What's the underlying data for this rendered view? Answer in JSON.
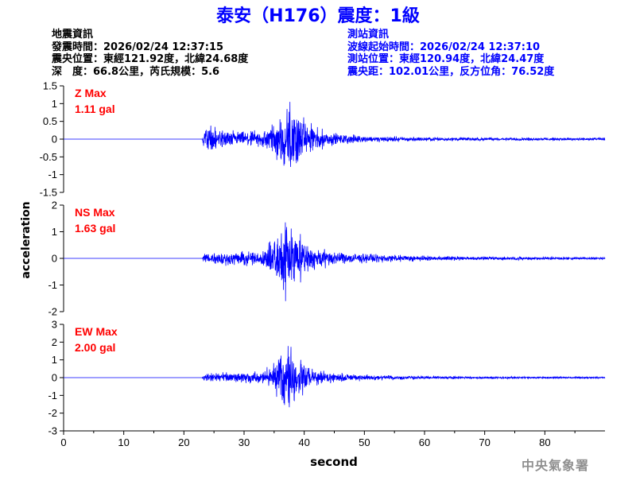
{
  "title": "泰安（H176）震度：1級",
  "quake_info": {
    "heading": "地震資訊",
    "origin_time": "發震時間：2026/02/24 12:37:15",
    "epicenter": "震央位置：東經121.92度，北緯24.68度",
    "depth_magnitude": "深　度：66.8公里，芮氏規模：5.6"
  },
  "station_info": {
    "heading": "測站資訊",
    "wave_start": "波線起始時間：2026/02/24 12:37:10",
    "location": "測站位置：東經120.94度，北緯24.47度",
    "distance": "震央距：102.01公里，反方位角：76.52度"
  },
  "agency": "中央氣象署",
  "colors": {
    "title": "#0000ff",
    "trace": "#0000ff",
    "max_label": "#ff0000",
    "axis": "#000000",
    "agency": "#909090"
  },
  "chart_data": [
    {
      "type": "line",
      "component": "Z",
      "max_label": "Z Max",
      "max_value": "1.11 gal",
      "ylim": [
        -1.5,
        1.5
      ],
      "yticks": [
        -1.5,
        -1,
        -0.5,
        0,
        0.5,
        1,
        1.5
      ],
      "ytick_labels": [
        "-1.5",
        "-1",
        "-0.5",
        "0",
        "0.5",
        "1",
        "1.5"
      ],
      "envelope": [
        [
          0,
          0.0
        ],
        [
          23,
          0.0
        ],
        [
          23.4,
          0.45
        ],
        [
          25,
          0.35
        ],
        [
          28,
          0.25
        ],
        [
          31,
          0.22
        ],
        [
          33,
          0.3
        ],
        [
          35,
          0.55
        ],
        [
          36.5,
          0.85
        ],
        [
          37.5,
          1.11
        ],
        [
          38.7,
          1.0
        ],
        [
          40,
          0.6
        ],
        [
          42,
          0.35
        ],
        [
          45,
          0.18
        ],
        [
          50,
          0.1
        ],
        [
          60,
          0.06
        ],
        [
          70,
          0.05
        ],
        [
          90,
          0.04
        ]
      ]
    },
    {
      "type": "line",
      "component": "NS",
      "max_label": "NS Max",
      "max_value": "1.63 gal",
      "ylim": [
        -2,
        2
      ],
      "yticks": [
        -2,
        -1,
        0,
        1,
        2
      ],
      "ytick_labels": [
        "-2",
        "-1",
        "0",
        "1",
        "2"
      ],
      "envelope": [
        [
          0,
          0.0
        ],
        [
          23,
          0.0
        ],
        [
          23.4,
          0.25
        ],
        [
          26,
          0.28
        ],
        [
          30,
          0.28
        ],
        [
          33,
          0.32
        ],
        [
          35,
          0.8
        ],
        [
          36.8,
          1.63
        ],
        [
          38.5,
          1.2
        ],
        [
          40,
          0.7
        ],
        [
          42,
          0.45
        ],
        [
          45,
          0.3
        ],
        [
          50,
          0.18
        ],
        [
          60,
          0.1
        ],
        [
          70,
          0.07
        ],
        [
          90,
          0.05
        ]
      ]
    },
    {
      "type": "line",
      "component": "EW",
      "max_label": "EW Max",
      "max_value": "2.00 gal",
      "ylim": [
        -3,
        3
      ],
      "yticks": [
        -3,
        -2,
        -1,
        0,
        1,
        2,
        3
      ],
      "ytick_labels": [
        "-3",
        "-2",
        "-1",
        "0",
        "1",
        "2",
        "3"
      ],
      "envelope": [
        [
          0,
          0.0
        ],
        [
          23,
          0.0
        ],
        [
          23.4,
          0.25
        ],
        [
          26,
          0.3
        ],
        [
          30,
          0.3
        ],
        [
          33,
          0.38
        ],
        [
          35,
          0.9
        ],
        [
          36.6,
          1.6
        ],
        [
          37.6,
          2.0
        ],
        [
          39,
          1.4
        ],
        [
          40.5,
          0.8
        ],
        [
          42,
          0.45
        ],
        [
          45,
          0.3
        ],
        [
          50,
          0.18
        ],
        [
          60,
          0.1
        ],
        [
          70,
          0.07
        ],
        [
          90,
          0.05
        ]
      ]
    }
  ],
  "x_axis": {
    "xlim": [
      0,
      90
    ],
    "ticks": [
      0,
      10,
      20,
      30,
      40,
      50,
      60,
      70,
      80
    ],
    "tick_labels": [
      "0",
      "10",
      "20",
      "30",
      "40",
      "50",
      "60",
      "70",
      "80"
    ]
  },
  "xlabel": "second",
  "ylabel": "acceleration"
}
